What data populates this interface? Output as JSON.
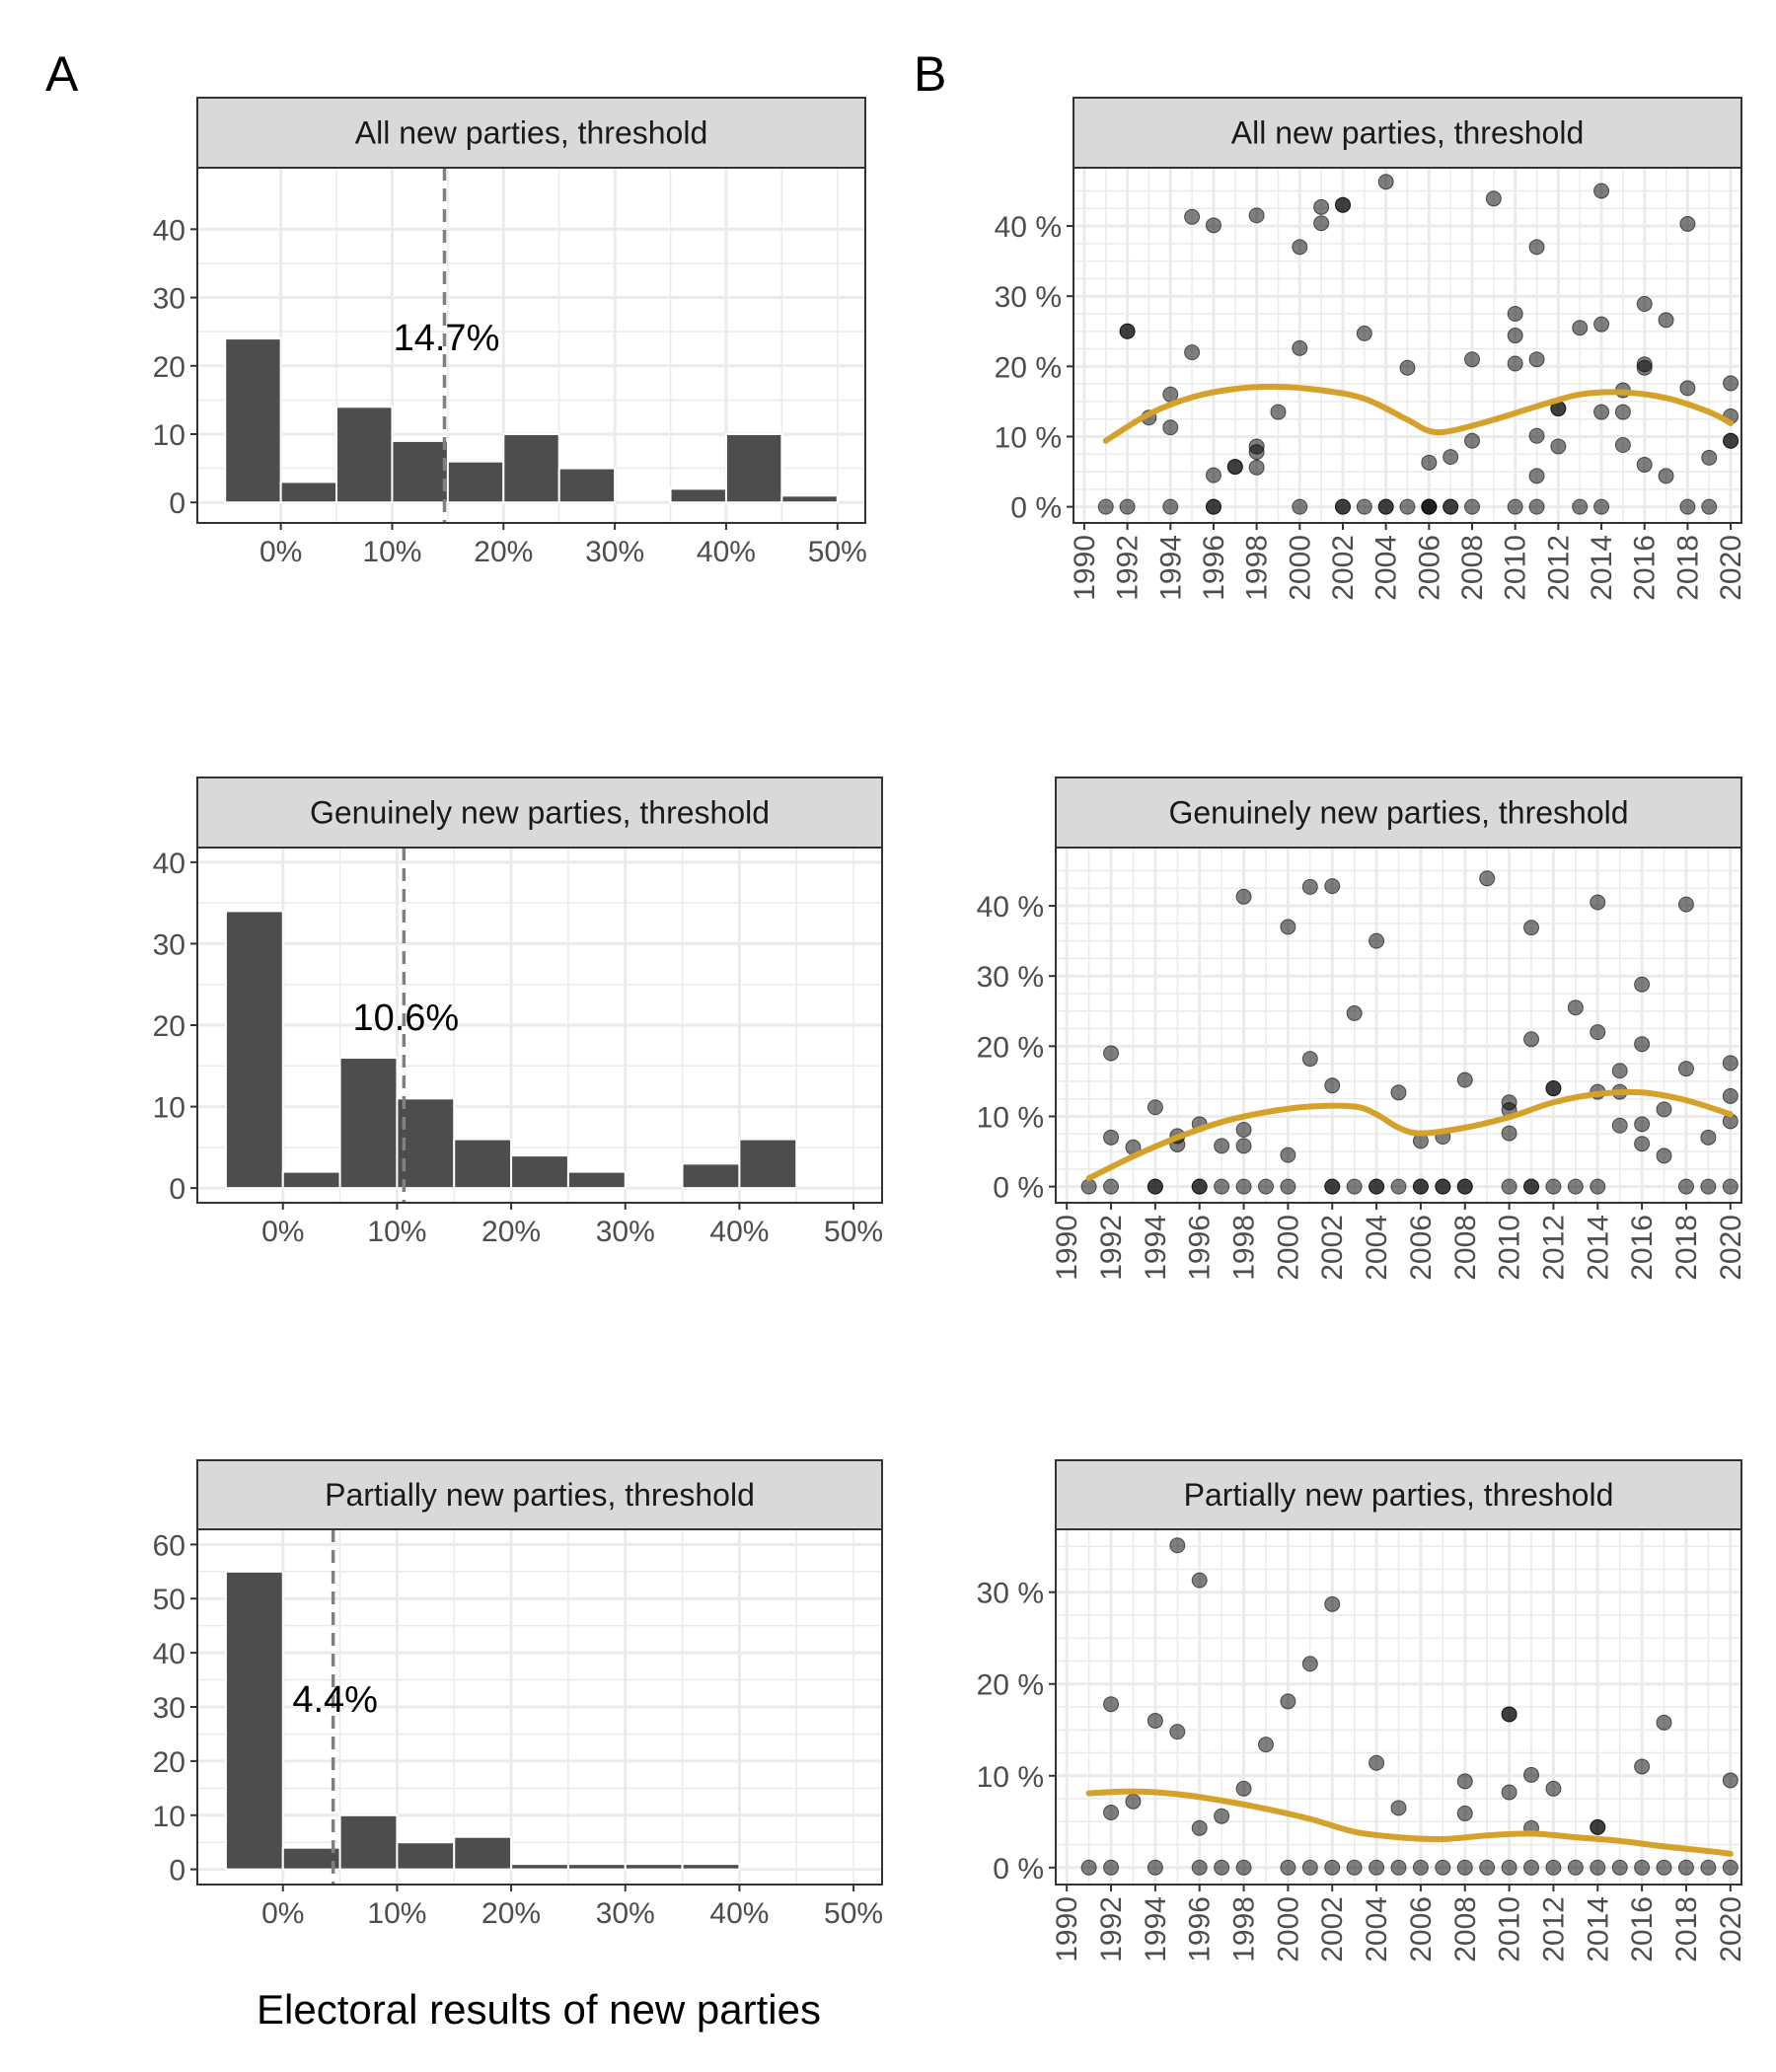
{
  "panel_labels": [
    "A",
    "B"
  ],
  "x_axis_label": "Electoral results of new parties",
  "chart_data": [
    {
      "type": "bar",
      "panel": "A",
      "title": "All new parties, threshold",
      "bins": [
        "-5–0%",
        "0–5%",
        "5–10%",
        "10–15%",
        "15–20%",
        "20–25%",
        "25–30%",
        "30–35%",
        "35–40%",
        "40–45%",
        "45–50%"
      ],
      "values": [
        24,
        3,
        14,
        9,
        6,
        10,
        5,
        0,
        2,
        10,
        1
      ],
      "xlim": [
        -0.075,
        0.525
      ],
      "xticks": [
        "0%",
        "10%",
        "20%",
        "30%",
        "40%",
        "50%"
      ],
      "ylim": [
        -3,
        49
      ],
      "yticks": [
        "0",
        "10",
        "20",
        "30",
        "40"
      ],
      "reference_line": 0.147,
      "reference_label": "14.7%"
    },
    {
      "type": "bar",
      "panel": "A",
      "title": "Genuinely new parties, threshold",
      "bins": [
        "-5–0%",
        "0–5%",
        "5–10%",
        "10–15%",
        "15–20%",
        "20–25%",
        "25–30%",
        "30–35%",
        "35–40%",
        "40–45%",
        "45–50%"
      ],
      "values": [
        34,
        2,
        16,
        11,
        6,
        4,
        2,
        0,
        3,
        6,
        0
      ],
      "xlim": [
        -0.075,
        0.525
      ],
      "xticks": [
        "0%",
        "10%",
        "20%",
        "30%",
        "40%",
        "50%"
      ],
      "ylim": [
        -1.8,
        41.8
      ],
      "yticks": [
        "0",
        "10",
        "20",
        "30",
        "40"
      ],
      "reference_line": 0.106,
      "reference_label": "10.6%"
    },
    {
      "type": "bar",
      "panel": "A",
      "title": "Partially new parties, threshold",
      "bins": [
        "-5–0%",
        "0–5%",
        "5–10%",
        "10–15%",
        "15–20%",
        "20–25%",
        "25–30%",
        "30–35%",
        "35–40%",
        "40–45%",
        "45–50%"
      ],
      "values": [
        55,
        4,
        10,
        5,
        6,
        1,
        1,
        1,
        1,
        0,
        0
      ],
      "xlim": [
        -0.075,
        0.525
      ],
      "xticks": [
        "0%",
        "10%",
        "20%",
        "30%",
        "40%",
        "50%"
      ],
      "ylim": [
        -2.8,
        62.8
      ],
      "yticks": [
        "0",
        "10",
        "20",
        "30",
        "40",
        "50",
        "60"
      ],
      "reference_line": 0.044,
      "reference_label": "4.4%"
    },
    {
      "type": "scatter",
      "panel": "B",
      "title": "All new parties, threshold",
      "xlim": [
        1989.5,
        2020.5
      ],
      "xticks": [
        1990,
        1992,
        1994,
        1996,
        1998,
        2000,
        2002,
        2004,
        2006,
        2008,
        2010,
        2012,
        2014,
        2016,
        2018,
        2020
      ],
      "ylim": [
        -2.3,
        48.3
      ],
      "yticks": [
        "0 %",
        "10 %",
        "20 %",
        "30 %",
        "40 %"
      ],
      "ytick_values": [
        0,
        10,
        20,
        30,
        40
      ],
      "points": [
        [
          1991,
          0
        ],
        [
          1992,
          0
        ],
        [
          1992,
          25
        ],
        [
          1992,
          25
        ],
        [
          1993,
          12.7
        ],
        [
          1994,
          0
        ],
        [
          1994,
          16
        ],
        [
          1994,
          11.3
        ],
        [
          1995,
          22
        ],
        [
          1995,
          41.3
        ],
        [
          1996,
          0
        ],
        [
          1996,
          0
        ],
        [
          1996,
          4.5
        ],
        [
          1996,
          40.1
        ],
        [
          1997,
          5.7
        ],
        [
          1997,
          5.7
        ],
        [
          1998,
          41.5
        ],
        [
          1998,
          8.6
        ],
        [
          1998,
          7.8
        ],
        [
          1998,
          5.6
        ],
        [
          1999,
          13.5
        ],
        [
          2000,
          0
        ],
        [
          2000,
          37
        ],
        [
          2000,
          22.6
        ],
        [
          2001,
          42.7
        ],
        [
          2001,
          40.4
        ],
        [
          2002,
          0
        ],
        [
          2002,
          0
        ],
        [
          2002,
          43
        ],
        [
          2002,
          43
        ],
        [
          2003,
          0
        ],
        [
          2003,
          24.7
        ],
        [
          2004,
          0
        ],
        [
          2004,
          0
        ],
        [
          2004,
          46.3
        ],
        [
          2005,
          0
        ],
        [
          2005,
          19.8
        ],
        [
          2006,
          0
        ],
        [
          2006,
          0
        ],
        [
          2006,
          0
        ],
        [
          2006,
          6.3
        ],
        [
          2007,
          0
        ],
        [
          2007,
          0
        ],
        [
          2007,
          7.1
        ],
        [
          2008,
          0
        ],
        [
          2008,
          9.4
        ],
        [
          2008,
          21
        ],
        [
          2009,
          43.9
        ],
        [
          2010,
          0
        ],
        [
          2010,
          27.5
        ],
        [
          2010,
          24.4
        ],
        [
          2010,
          20.4
        ],
        [
          2011,
          0
        ],
        [
          2011,
          37
        ],
        [
          2011,
          21
        ],
        [
          2011,
          10.1
        ],
        [
          2011,
          4.4
        ],
        [
          2012,
          14
        ],
        [
          2012,
          14
        ],
        [
          2012,
          8.6
        ],
        [
          2013,
          0
        ],
        [
          2013,
          25.5
        ],
        [
          2014,
          0
        ],
        [
          2014,
          45
        ],
        [
          2014,
          26
        ],
        [
          2014,
          13.5
        ],
        [
          2015,
          16.6
        ],
        [
          2015,
          13.5
        ],
        [
          2015,
          8.8
        ],
        [
          2016,
          28.9
        ],
        [
          2016,
          20.3
        ],
        [
          2016,
          19.8
        ],
        [
          2016,
          6
        ],
        [
          2017,
          26.6
        ],
        [
          2017,
          4.4
        ],
        [
          2018,
          0
        ],
        [
          2018,
          40.3
        ],
        [
          2018,
          16.9
        ],
        [
          2019,
          0
        ],
        [
          2019,
          7
        ],
        [
          2020,
          17.6
        ],
        [
          2020,
          12.9
        ],
        [
          2020,
          9.4
        ],
        [
          2020,
          9.4
        ]
      ],
      "smooth": [
        [
          1991,
          9.4
        ],
        [
          1993,
          13.2
        ],
        [
          1995,
          15.6
        ],
        [
          1997,
          16.8
        ],
        [
          1999,
          17.1
        ],
        [
          2001,
          16.6
        ],
        [
          2003,
          15.4
        ],
        [
          2005,
          12.4
        ],
        [
          2006,
          10.8
        ],
        [
          2007,
          10.8
        ],
        [
          2009,
          12.4
        ],
        [
          2011,
          14.3
        ],
        [
          2013,
          16.0
        ],
        [
          2015,
          16.3
        ],
        [
          2017,
          15.5
        ],
        [
          2019,
          13.5
        ],
        [
          2020,
          11.9
        ]
      ]
    },
    {
      "type": "scatter",
      "panel": "B",
      "title": "Genuinely new parties, threshold",
      "xlim": [
        1989.5,
        2020.5
      ],
      "xticks": [
        1990,
        1992,
        1994,
        1996,
        1998,
        2000,
        2002,
        2004,
        2006,
        2008,
        2010,
        2012,
        2014,
        2016,
        2018,
        2020
      ],
      "ylim": [
        -2.3,
        48.3
      ],
      "yticks": [
        "0 %",
        "10 %",
        "20 %",
        "30 %",
        "40 %"
      ],
      "ytick_values": [
        0,
        10,
        20,
        30,
        40
      ],
      "points": [
        [
          1991,
          0
        ],
        [
          1992,
          0
        ],
        [
          1992,
          19
        ],
        [
          1992,
          7
        ],
        [
          1993,
          5.6
        ],
        [
          1994,
          0
        ],
        [
          1994,
          0
        ],
        [
          1994,
          11.3
        ],
        [
          1995,
          7.2
        ],
        [
          1995,
          6
        ],
        [
          1996,
          0
        ],
        [
          1996,
          0
        ],
        [
          1996,
          8.9
        ],
        [
          1997,
          0
        ],
        [
          1997,
          5.8
        ],
        [
          1998,
          0
        ],
        [
          1998,
          41.3
        ],
        [
          1998,
          8.1
        ],
        [
          1998,
          5.8
        ],
        [
          1999,
          0
        ],
        [
          2000,
          0
        ],
        [
          2000,
          37
        ],
        [
          2000,
          4.5
        ],
        [
          2001,
          42.7
        ],
        [
          2001,
          18.2
        ],
        [
          2002,
          0
        ],
        [
          2002,
          0
        ],
        [
          2002,
          42.8
        ],
        [
          2002,
          14.4
        ],
        [
          2003,
          0
        ],
        [
          2003,
          24.7
        ],
        [
          2004,
          0
        ],
        [
          2004,
          0
        ],
        [
          2004,
          35
        ],
        [
          2005,
          0
        ],
        [
          2005,
          13.4
        ],
        [
          2006,
          0
        ],
        [
          2006,
          0
        ],
        [
          2006,
          6.5
        ],
        [
          2007,
          0
        ],
        [
          2007,
          0
        ],
        [
          2007,
          7.1
        ],
        [
          2008,
          0
        ],
        [
          2008,
          0
        ],
        [
          2008,
          15.2
        ],
        [
          2009,
          43.9
        ],
        [
          2010,
          0
        ],
        [
          2010,
          12
        ],
        [
          2010,
          10.9
        ],
        [
          2010,
          7.6
        ],
        [
          2011,
          0
        ],
        [
          2011,
          0
        ],
        [
          2011,
          36.9
        ],
        [
          2011,
          21
        ],
        [
          2012,
          0
        ],
        [
          2012,
          14
        ],
        [
          2012,
          14
        ],
        [
          2013,
          0
        ],
        [
          2013,
          25.5
        ],
        [
          2014,
          0
        ],
        [
          2014,
          40.5
        ],
        [
          2014,
          22
        ],
        [
          2014,
          13.5
        ],
        [
          2015,
          16.5
        ],
        [
          2015,
          13.5
        ],
        [
          2015,
          8.7
        ],
        [
          2016,
          28.8
        ],
        [
          2016,
          20.3
        ],
        [
          2016,
          8.9
        ],
        [
          2016,
          6.1
        ],
        [
          2017,
          11
        ],
        [
          2017,
          4.4
        ],
        [
          2018,
          0
        ],
        [
          2018,
          40.2
        ],
        [
          2018,
          16.8
        ],
        [
          2019,
          0
        ],
        [
          2019,
          7
        ],
        [
          2020,
          0
        ],
        [
          2020,
          17.6
        ],
        [
          2020,
          12.9
        ],
        [
          2020,
          9.3
        ]
      ],
      "smooth": [
        [
          1991,
          1.2
        ],
        [
          1993,
          4.3
        ],
        [
          1995,
          7.0
        ],
        [
          1997,
          9.2
        ],
        [
          1999,
          10.6
        ],
        [
          2001,
          11.4
        ],
        [
          2003,
          11.4
        ],
        [
          2004,
          10.3
        ],
        [
          2005,
          8.4
        ],
        [
          2006,
          7.6
        ],
        [
          2008,
          8.4
        ],
        [
          2010,
          9.9
        ],
        [
          2012,
          12.0
        ],
        [
          2014,
          13.2
        ],
        [
          2016,
          13.4
        ],
        [
          2018,
          12.3
        ],
        [
          2020,
          10.3
        ]
      ]
    },
    {
      "type": "scatter",
      "panel": "B",
      "title": "Partially new parties, threshold",
      "xlim": [
        1989.5,
        2020.5
      ],
      "xticks": [
        1990,
        1992,
        1994,
        1996,
        1998,
        2000,
        2002,
        2004,
        2006,
        2008,
        2010,
        2012,
        2014,
        2016,
        2018,
        2020
      ],
      "ylim": [
        -1.85,
        36.85
      ],
      "yticks": [
        "0 %",
        "10 %",
        "20 %",
        "30 %"
      ],
      "ytick_values": [
        0,
        10,
        20,
        30
      ],
      "points": [
        [
          1991,
          0
        ],
        [
          1992,
          0
        ],
        [
          1992,
          17.8
        ],
        [
          1992,
          6
        ],
        [
          1993,
          7.2
        ],
        [
          1994,
          0
        ],
        [
          1994,
          16
        ],
        [
          1995,
          35.1
        ],
        [
          1995,
          14.8
        ],
        [
          1996,
          0
        ],
        [
          1996,
          31.3
        ],
        [
          1996,
          4.3
        ],
        [
          1997,
          0
        ],
        [
          1997,
          5.6
        ],
        [
          1998,
          0
        ],
        [
          1998,
          8.6
        ],
        [
          1999,
          13.4
        ],
        [
          2000,
          0
        ],
        [
          2000,
          18.1
        ],
        [
          2001,
          0
        ],
        [
          2001,
          22.2
        ],
        [
          2002,
          0
        ],
        [
          2002,
          28.7
        ],
        [
          2003,
          0
        ],
        [
          2004,
          0
        ],
        [
          2004,
          11.4
        ],
        [
          2005,
          0
        ],
        [
          2005,
          6.5
        ],
        [
          2006,
          0
        ],
        [
          2007,
          0
        ],
        [
          2008,
          0
        ],
        [
          2008,
          9.4
        ],
        [
          2008,
          5.9
        ],
        [
          2009,
          0
        ],
        [
          2010,
          0
        ],
        [
          2010,
          16.7
        ],
        [
          2010,
          16.7
        ],
        [
          2010,
          8.2
        ],
        [
          2011,
          0
        ],
        [
          2011,
          10.1
        ],
        [
          2011,
          4.3
        ],
        [
          2012,
          0
        ],
        [
          2012,
          8.6
        ],
        [
          2013,
          0
        ],
        [
          2014,
          0
        ],
        [
          2014,
          4.4
        ],
        [
          2014,
          4.4
        ],
        [
          2015,
          0
        ],
        [
          2016,
          0
        ],
        [
          2016,
          11
        ],
        [
          2017,
          0
        ],
        [
          2017,
          15.8
        ],
        [
          2018,
          0
        ],
        [
          2019,
          0
        ],
        [
          2020,
          0
        ],
        [
          2020,
          9.5
        ]
      ],
      "smooth": [
        [
          1991,
          8.1
        ],
        [
          1993,
          8.3
        ],
        [
          1995,
          8.0
        ],
        [
          1997,
          7.3
        ],
        [
          1999,
          6.4
        ],
        [
          2001,
          5.3
        ],
        [
          2003,
          3.9
        ],
        [
          2005,
          3.3
        ],
        [
          2007,
          3.1
        ],
        [
          2009,
          3.5
        ],
        [
          2011,
          3.7
        ],
        [
          2013,
          3.3
        ],
        [
          2015,
          2.9
        ],
        [
          2017,
          2.3
        ],
        [
          2019,
          1.8
        ],
        [
          2020,
          1.5
        ]
      ]
    }
  ]
}
